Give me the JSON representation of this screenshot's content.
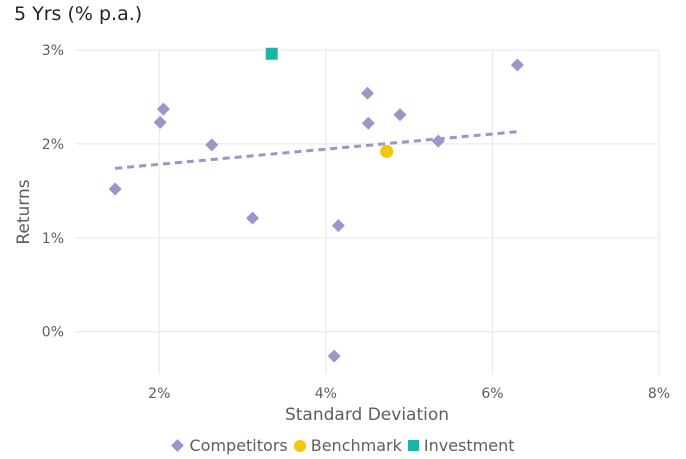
{
  "title": "5 Yrs (% p.a.)",
  "colors": {
    "competitors": "#a391c8",
    "benchmark": "#f2c80f",
    "investment": "#1ab5a6",
    "gridline": "#e6e6e6",
    "trendline": "#a391c8"
  },
  "chart_data": {
    "type": "scatter",
    "xlabel": "Standard Deviation",
    "ylabel": "Returns",
    "x_ticks": [
      "2%",
      "4%",
      "6%",
      "8%"
    ],
    "y_ticks": [
      "0%",
      "1%",
      "2%",
      "3%"
    ],
    "xlim": [
      1.0,
      8.0
    ],
    "ylim": [
      -0.45,
      3.0
    ],
    "grid": true,
    "legend_position": "bottom",
    "series": [
      {
        "name": "Competitors",
        "marker": "diamond",
        "points": [
          {
            "x": 1.47,
            "y": 1.52
          },
          {
            "x": 2.01,
            "y": 2.23
          },
          {
            "x": 2.05,
            "y": 2.37
          },
          {
            "x": 2.63,
            "y": 1.99
          },
          {
            "x": 3.12,
            "y": 1.21
          },
          {
            "x": 4.1,
            "y": -0.26
          },
          {
            "x": 4.15,
            "y": 1.13
          },
          {
            "x": 4.5,
            "y": 2.54
          },
          {
            "x": 4.51,
            "y": 2.22
          },
          {
            "x": 4.89,
            "y": 2.31
          },
          {
            "x": 5.35,
            "y": 2.03
          },
          {
            "x": 6.3,
            "y": 2.84
          }
        ]
      },
      {
        "name": "Benchmark",
        "marker": "circle",
        "points": [
          {
            "x": 4.73,
            "y": 1.92
          }
        ]
      },
      {
        "name": "Investment",
        "marker": "square",
        "points": [
          {
            "x": 3.35,
            "y": 2.96
          }
        ]
      }
    ],
    "trendline": {
      "x": [
        1.47,
        6.3
      ],
      "y": [
        1.74,
        2.13
      ],
      "style": "dashed"
    }
  }
}
